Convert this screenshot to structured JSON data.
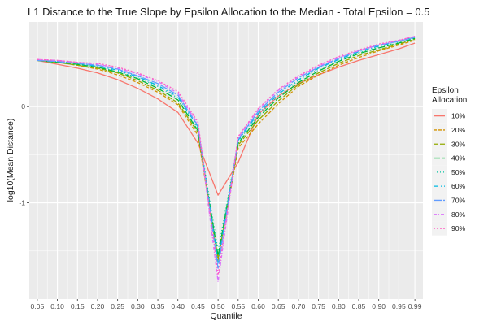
{
  "chart_data": {
    "type": "line",
    "title": "L1 Distance to the True Slope by Epsilon Allocation to the Median - Total Epsilon = 0.5",
    "xlabel": "Quantile",
    "ylabel": "log10(Mean Distance)",
    "x": [
      0.05,
      0.1,
      0.15,
      0.2,
      0.25,
      0.3,
      0.35,
      0.4,
      0.45,
      0.5,
      0.55,
      0.6,
      0.65,
      0.7,
      0.75,
      0.8,
      0.85,
      0.9,
      0.95,
      0.99
    ],
    "x_tick_labels": [
      "0.05",
      "0.10",
      "0.15",
      "0.20",
      "0.25",
      "0.30",
      "0.35",
      "0.40",
      "0.45",
      "0.50",
      "0.55",
      "0.60",
      "0.65",
      "0.70",
      "0.75",
      "0.80",
      "0.85",
      "0.90",
      "0.95",
      "0.99"
    ],
    "y_ticks": [
      0,
      -1
    ],
    "y_tick_labels": [
      "0",
      "-1"
    ],
    "xlim": [
      0.03,
      1.01
    ],
    "ylim": [
      -2.0,
      0.88
    ],
    "grid": true,
    "legend": {
      "title": "Epsilon Allocation",
      "position": "right"
    },
    "series": [
      {
        "name": "10%",
        "color": "#F8766D",
        "dash": "solid",
        "values": [
          0.48,
          0.44,
          0.4,
          0.35,
          0.28,
          0.19,
          0.08,
          -0.06,
          -0.38,
          -0.92,
          -0.58,
          -0.08,
          0.11,
          0.24,
          0.33,
          0.41,
          0.48,
          0.54,
          0.6,
          0.66
        ]
      },
      {
        "name": "20%",
        "color": "#D39200",
        "dash": "4,2",
        "values": [
          0.48,
          0.46,
          0.43,
          0.39,
          0.33,
          0.25,
          0.15,
          0.02,
          -0.3,
          -1.6,
          -0.43,
          -0.18,
          0.03,
          0.21,
          0.33,
          0.43,
          0.51,
          0.58,
          0.64,
          0.69
        ]
      },
      {
        "name": "30%",
        "color": "#93AA00",
        "dash": "6,2",
        "values": [
          0.48,
          0.46,
          0.43,
          0.4,
          0.35,
          0.27,
          0.17,
          0.04,
          -0.27,
          -1.58,
          -0.4,
          -0.14,
          0.06,
          0.23,
          0.35,
          0.45,
          0.53,
          0.59,
          0.65,
          0.7
        ]
      },
      {
        "name": "40%",
        "color": "#00BA38",
        "dash": "8,3",
        "values": [
          0.48,
          0.46,
          0.44,
          0.41,
          0.36,
          0.29,
          0.19,
          0.07,
          -0.25,
          -1.55,
          -0.38,
          -0.11,
          0.09,
          0.25,
          0.37,
          0.47,
          0.55,
          0.61,
          0.66,
          0.71
        ]
      },
      {
        "name": "50%",
        "color": "#00C19F",
        "dash": "1,3",
        "values": [
          0.48,
          0.47,
          0.44,
          0.41,
          0.37,
          0.3,
          0.21,
          0.09,
          -0.23,
          -1.5,
          -0.36,
          -0.09,
          0.11,
          0.27,
          0.39,
          0.48,
          0.56,
          0.62,
          0.67,
          0.71
        ]
      },
      {
        "name": "60%",
        "color": "#00B9E3",
        "dash": "6,3,1,3",
        "values": [
          0.48,
          0.47,
          0.45,
          0.42,
          0.38,
          0.31,
          0.22,
          0.1,
          -0.21,
          -1.62,
          -0.35,
          -0.07,
          0.13,
          0.28,
          0.4,
          0.49,
          0.57,
          0.63,
          0.68,
          0.72
        ]
      },
      {
        "name": "70%",
        "color": "#619CFF",
        "dash": "10,2",
        "values": [
          0.48,
          0.47,
          0.45,
          0.43,
          0.39,
          0.32,
          0.24,
          0.12,
          -0.2,
          -1.68,
          -0.34,
          -0.05,
          0.15,
          0.3,
          0.41,
          0.5,
          0.58,
          0.64,
          0.68,
          0.72
        ]
      },
      {
        "name": "80%",
        "color": "#DB72FB",
        "dash": "4,2,1,2",
        "values": [
          0.49,
          0.48,
          0.46,
          0.44,
          0.4,
          0.34,
          0.26,
          0.14,
          -0.18,
          -1.82,
          -0.32,
          -0.03,
          0.17,
          0.31,
          0.42,
          0.51,
          0.58,
          0.64,
          0.69,
          0.73
        ]
      },
      {
        "name": "90%",
        "color": "#FF61C3",
        "dash": "2,2",
        "values": [
          0.49,
          0.48,
          0.46,
          0.45,
          0.41,
          0.35,
          0.27,
          0.16,
          -0.16,
          -1.75,
          -0.31,
          -0.02,
          0.18,
          0.32,
          0.43,
          0.52,
          0.59,
          0.65,
          0.69,
          0.73
        ]
      }
    ]
  }
}
